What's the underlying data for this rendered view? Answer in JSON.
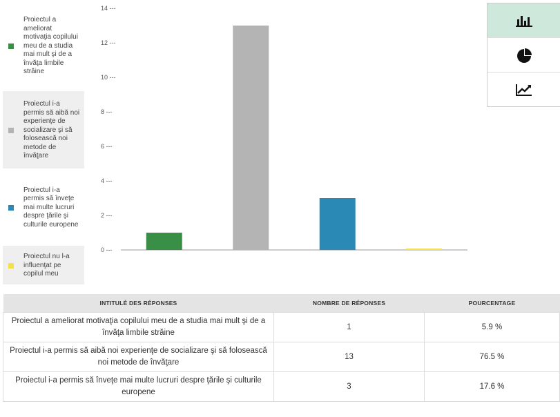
{
  "chart_data": {
    "type": "bar",
    "categories": [
      "Proiectul a ameliorat motivaţia copilului meu de a studia mai mult şi de a învăţa limbile străine",
      "Proiectul i-a permis să aibă noi experienţe de socializare şi să folosească noi metode de învăţare",
      "Proiectul i-a permis să înveţe mai multe lucruri despre ţările şi culturile europene",
      "Proiectul nu l-a influenţat pe copilul meu"
    ],
    "values": [
      1,
      13,
      3,
      0
    ],
    "colors": [
      "#3a8f47",
      "#b4b4b4",
      "#2b8ab5",
      "#f3e04a"
    ],
    "ylim": [
      0,
      14
    ],
    "yticks": [
      0,
      2,
      4,
      6,
      8,
      10,
      12,
      14
    ],
    "title": "",
    "xlabel": "",
    "ylabel": ""
  },
  "legend": [
    {
      "label": "Proiectul a ameliorat motivaţia copilului meu de a studia mai mult şi de a învăţa limbile străine"
    },
    {
      "label": "Proiectul i-a permis să aibă noi experienţe de socializare şi să folosească noi metode de învăţare"
    },
    {
      "label": "Proiectul i-a permis să înveţe mai multe lucruri despre ţările şi culturile europene"
    },
    {
      "label": "Proiectul nu l-a influenţat pe copilul meu"
    }
  ],
  "switcher": {
    "items": [
      {
        "icon": "bar-chart-icon",
        "active": true
      },
      {
        "icon": "pie-chart-icon",
        "active": false
      },
      {
        "icon": "line-chart-icon",
        "active": false
      }
    ]
  },
  "table": {
    "headers": [
      "INTITULÉ DES RÉPONSES",
      "NOMBRE DE RÉPONSES",
      "POURCENTAGE"
    ],
    "rows": [
      {
        "label": "Proiectul a ameliorat motivaţia copilului meu de a studia mai mult şi de a învăţa limbile străine",
        "count": "1",
        "percent": "5.9 %"
      },
      {
        "label": "Proiectul i-a permis să aibă noi experienţe de socializare şi să folosească noi metode de învăţare",
        "count": "13",
        "percent": "76.5 %"
      },
      {
        "label": "Proiectul i-a permis să înveţe mai multe lucruri despre ţările şi culturile europene",
        "count": "3",
        "percent": "17.6 %"
      }
    ]
  }
}
